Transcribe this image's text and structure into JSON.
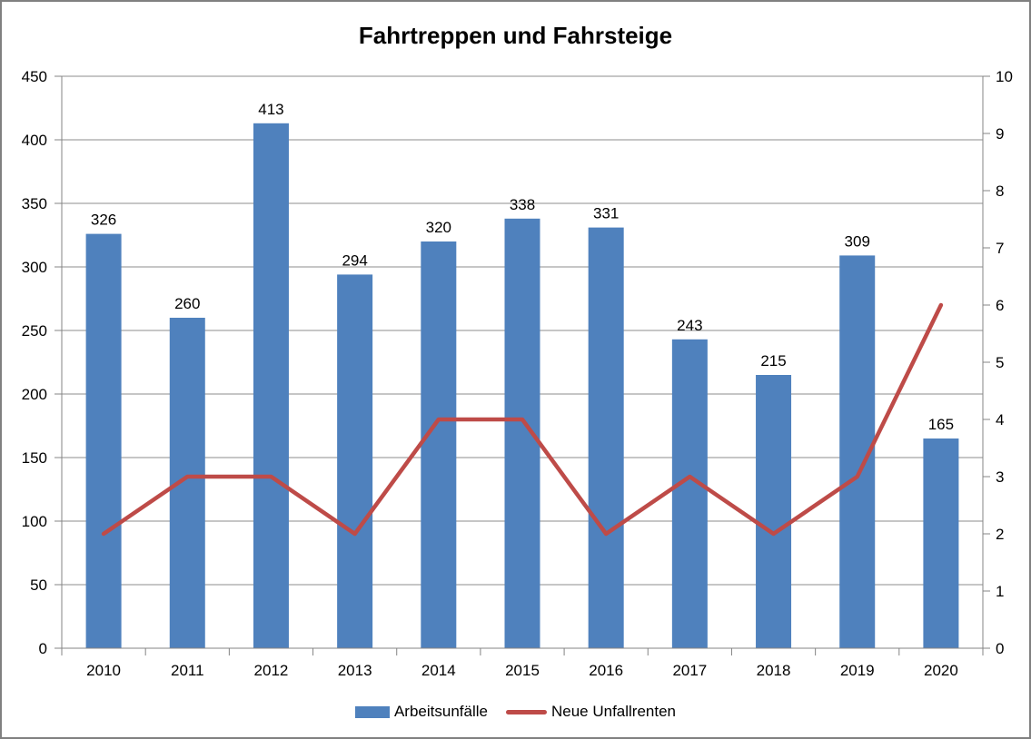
{
  "colors": {
    "frame_border": "#808080",
    "axis_line": "#848484",
    "gridline": "#8C8C8C",
    "text": "#000000",
    "background": "#FFFFFF"
  },
  "chart_data": {
    "type": "bar+line combo",
    "title": "Fahrtreppen und Fahrsteige",
    "categories": [
      "2010",
      "2011",
      "2012",
      "2013",
      "2014",
      "2015",
      "2016",
      "2017",
      "2018",
      "2019",
      "2020"
    ],
    "series": [
      {
        "name": "Arbeitsunfälle",
        "type": "bar",
        "axis": "left",
        "color": "#4F81BD",
        "values": [
          326,
          260,
          413,
          294,
          320,
          338,
          331,
          243,
          215,
          309,
          165
        ],
        "data_labels": [
          326,
          260,
          413,
          294,
          320,
          338,
          331,
          243,
          215,
          309,
          165
        ]
      },
      {
        "name": "Neue Unfallrenten",
        "type": "line",
        "axis": "right",
        "color": "#BE4B48",
        "values": [
          2,
          3,
          3,
          2,
          4,
          4,
          2,
          3,
          2,
          3,
          6
        ]
      }
    ],
    "left_axis": {
      "min": 0,
      "max": 450,
      "step": 50,
      "tick_labels": [
        "450",
        "400",
        "350",
        "300",
        "250",
        "200",
        "150",
        "100",
        "50",
        "0"
      ]
    },
    "right_axis": {
      "min": 0,
      "max": 10,
      "step": 1,
      "tick_labels": [
        "10",
        "9",
        "8",
        "7",
        "6",
        "5",
        "4",
        "3",
        "2",
        "1",
        "0"
      ]
    },
    "gridlines": {
      "horizontal": true,
      "interval_left_axis_units": 50,
      "drawn_behind_bars": true
    },
    "legend": {
      "position": "bottom",
      "entries": [
        {
          "label": "Arbeitsunfälle",
          "swatch": "bar",
          "color": "#4F81BD"
        },
        {
          "label": "Neue Unfallrenten",
          "swatch": "line",
          "color": "#BE4B48"
        }
      ]
    }
  }
}
